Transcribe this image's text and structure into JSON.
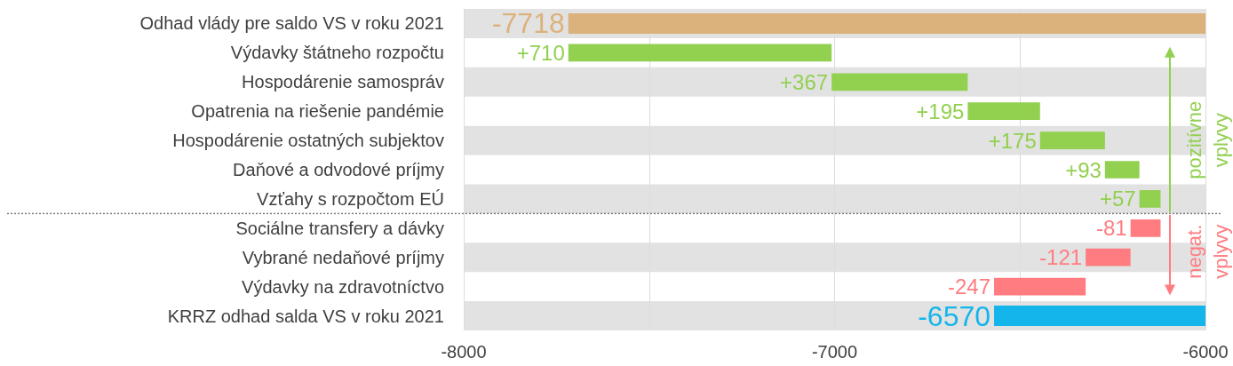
{
  "chart_data": {
    "type": "bar",
    "orientation": "horizontal",
    "categories": [
      "Odhad vlády pre saldo VS v roku 2021",
      "Výdavky štátneho rozpočtu",
      "Hospodárenie samospráv",
      "Opatrenia na riešenie pandémie",
      "Hospodárenie ostatných subjektov",
      "Daňové a odvodové príjmy",
      "Vzťahy s rozpočtom EÚ",
      "Sociálne transfery a dávky",
      "Vybrané nedaňové príjmy",
      "Výdavky na zdravotníctvo",
      "KRRZ odhad salda VS v roku 2021"
    ],
    "values": [
      -7718,
      710,
      367,
      195,
      175,
      93,
      57,
      -81,
      -121,
      -247,
      -6570
    ],
    "base": [
      null,
      -7718,
      -7008,
      -6641,
      -6446,
      -6271,
      -6178,
      -6121,
      -6202,
      -6323,
      null
    ],
    "value_labels": [
      "-7718",
      "+710",
      "+367",
      "+195",
      "+175",
      "+93",
      "+57",
      "-81",
      "-121",
      "-247",
      "-6570"
    ],
    "colors": [
      "#dcb27c",
      "#92d050",
      "#92d050",
      "#92d050",
      "#92d050",
      "#92d050",
      "#92d050",
      "#ff7c80",
      "#ff7c80",
      "#ff7c80",
      "#13b5ea"
    ],
    "xlim": [
      -8000,
      -6000
    ],
    "xticks": [
      -8000,
      -7000,
      -6000
    ],
    "grid": "x",
    "annotations": [
      "pozitívne vplyvy",
      "negat. vplyvy"
    ]
  }
}
